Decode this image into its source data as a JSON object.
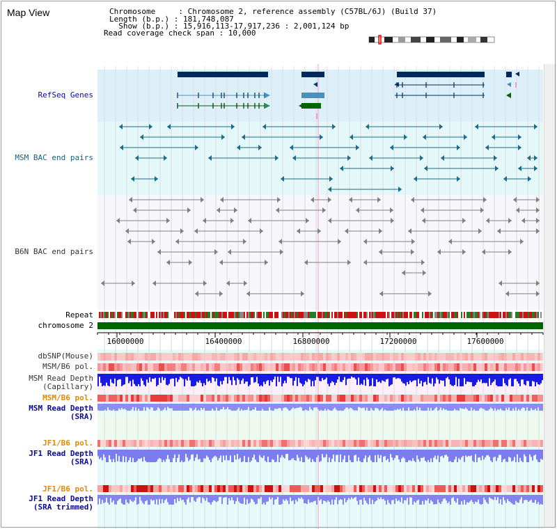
{
  "view_title": "Map View",
  "header": {
    "line1": "Chromosome     : Chromosome 2, reference assembly (C57BL/6J) (Build 37)",
    "line2": "Length (b.p.) : 181,748,087",
    "line3": "  Show (b.p.) : 15,916,113-17,917,236 : 2,001,124 bp",
    "line4": "Read coverage check span : 10,000"
  },
  "tracks": {
    "refseq": "RefSeq Genes",
    "msm_bac": "MSM BAC end pairs",
    "b6n_bac": "B6N BAC end pairs",
    "repeat": "Repeat",
    "chromosome": "chromosome 2",
    "dbsnp": "dbSNP(Mouse)",
    "msm_b6_pol": "MSM/B6 pol.",
    "msm_depth_cap": "MSM Read Depth\n(Capillary)",
    "msm_b6_pol2": "MSM/B6 pol.",
    "msm_depth_sra": "MSM Read Depth\n(SRA)",
    "jf1_pol": "JF1/B6 pol.",
    "jf1_depth_sra": "JF1 Read Depth\n(SRA)",
    "jf1_pol2": "JF1/B6 pol.",
    "jf1_depth_trim": "JF1 Read Depth\n(SRA trimmed)"
  },
  "axis": {
    "ticks": [
      "16000000",
      "16400000",
      "16800000",
      "17200000",
      "17600000"
    ]
  },
  "colors": {
    "refseq_band": "#ddf0fa",
    "msm_band": "#e4f8f9",
    "b6n_band": "#f6f6fb",
    "gene_dark": "#002a5c",
    "gene_teal": "#4a90b8",
    "gene_green": "#006400",
    "msm_pair": "#1e6b8a",
    "b6n_pair": "#808080",
    "chromosome": "#006400",
    "depth_blue": "#1a1ae6",
    "depth_sra": "#8080f0",
    "label_blue": "#0a0a8c",
    "label_teal": "#1a5e7a",
    "label_orange": "#e08a00"
  }
}
